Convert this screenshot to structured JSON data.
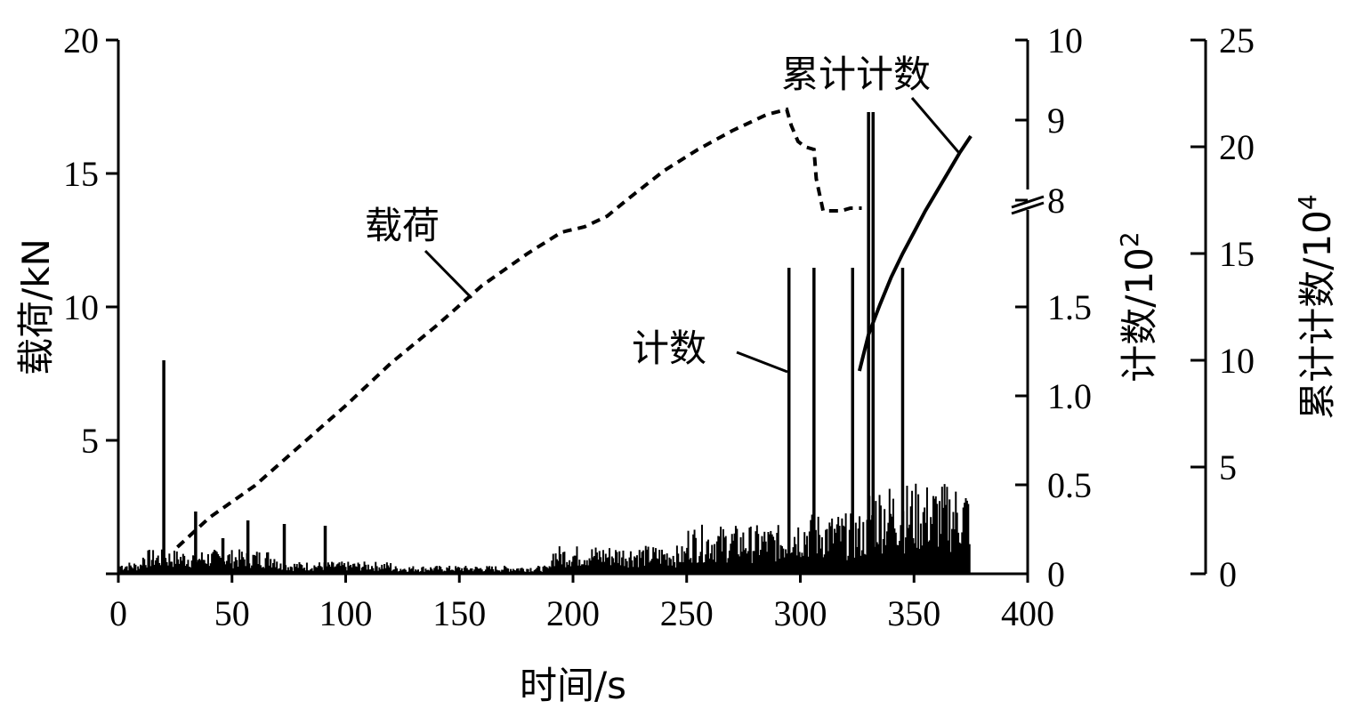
{
  "chart_data": {
    "type": "line",
    "title": "",
    "xlabel": "时间/s",
    "xlim": [
      0,
      400
    ],
    "xticks": [
      "0",
      "50",
      "100",
      "150",
      "200",
      "250",
      "300",
      "350",
      "400"
    ],
    "ylabel_left": "载荷/kN",
    "ylim_left": [
      0,
      20
    ],
    "yticks_left": [
      "5",
      "10",
      "15",
      "20"
    ],
    "ylabel_right1": "计数/10",
    "ylabel_right1_exp": "2",
    "yticks_right1_lower": [
      "0",
      "0.5",
      "1.0",
      "1.5"
    ],
    "yticks_right1_upper": [
      "8",
      "9",
      "10"
    ],
    "ylabel_right2": "累计计数/10",
    "ylabel_right2_exp": "4",
    "ylim_right2": [
      0,
      25
    ],
    "yticks_right2": [
      "0",
      "5",
      "10",
      "15",
      "20",
      "25"
    ],
    "annotations": {
      "load": "载荷",
      "count": "计数",
      "cumulative": "累计计数"
    },
    "series": [
      {
        "name": "载荷",
        "style": "dashed",
        "x": [
          26,
          40,
          60,
          80,
          100,
          120,
          140,
          160,
          180,
          195,
          205,
          215,
          225,
          240,
          255,
          270,
          285,
          294,
          296,
          299,
          302,
          306,
          307,
          310,
          318,
          322,
          324,
          326,
          327
        ],
        "y": [
          1.0,
          2.1,
          3.3,
          4.8,
          6.3,
          7.9,
          9.3,
          10.8,
          12.0,
          12.8,
          13.0,
          13.4,
          14.1,
          15.1,
          15.9,
          16.6,
          17.2,
          17.4,
          16.8,
          16.2,
          16.0,
          15.9,
          14.8,
          13.6,
          13.6,
          13.7,
          13.7,
          13.7,
          13.7
        ]
      },
      {
        "name": "计数",
        "style": "spikes",
        "unit_note": "x100, axis broken between 2 and 8",
        "spikes": [
          {
            "x": 20,
            "v": 1.2
          },
          {
            "x": 34,
            "v": 0.35
          },
          {
            "x": 46,
            "v": 0.2
          },
          {
            "x": 57,
            "v": 0.3
          },
          {
            "x": 73,
            "v": 0.28
          },
          {
            "x": 91,
            "v": 0.27
          },
          {
            "x": 295,
            "v": 1.72
          },
          {
            "x": 306,
            "v": 1.72
          },
          {
            "x": 323,
            "v": 1.72
          },
          {
            "x": 330,
            "v": 9.1
          },
          {
            "x": 332,
            "v": 9.1
          },
          {
            "x": 345,
            "v": 1.72
          }
        ]
      },
      {
        "name": "累计计数",
        "style": "solid",
        "x": [
          326,
          330,
          335,
          340,
          345,
          350,
          355,
          360,
          365,
          370,
          375
        ],
        "y": [
          9.5,
          11.2,
          12.6,
          13.9,
          15.0,
          16.0,
          17.0,
          17.9,
          18.8,
          19.7,
          20.5
        ]
      }
    ]
  }
}
